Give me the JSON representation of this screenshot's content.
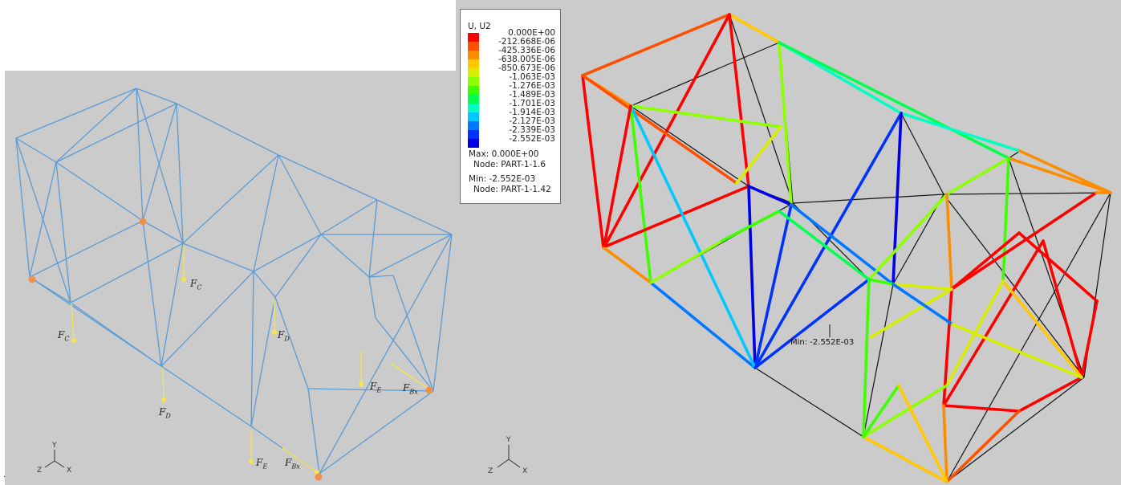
{
  "legend": {
    "title": "U, U2",
    "entries": [
      {
        "label": "0.000E+00",
        "color": "#ff0000"
      },
      {
        "label": "-212.668E-06",
        "color": "#ff5000"
      },
      {
        "label": "-425.336E-06",
        "color": "#ff8c00"
      },
      {
        "label": "-638.005E-06",
        "color": "#ffc800"
      },
      {
        "label": "-850.673E-06",
        "color": "#d8f000"
      },
      {
        "label": "-1.063E-03",
        "color": "#8cff00"
      },
      {
        "label": "-1.276E-03",
        "color": "#3cff00"
      },
      {
        "label": "-1.489E-03",
        "color": "#00ff50"
      },
      {
        "label": "-1.701E-03",
        "color": "#00ffc0"
      },
      {
        "label": "-1.914E-03",
        "color": "#00c8ff"
      },
      {
        "label": "-2.127E-03",
        "color": "#0078ff"
      },
      {
        "label": "-2.339E-03",
        "color": "#0032ff"
      },
      {
        "label": "-2.552E-03",
        "color": "#0000e6"
      }
    ],
    "max_line": "Max:  0.000E+00",
    "max_node": "Node: PART-1-1.6",
    "min_line": "Min:  -2.552E-03",
    "min_node": "Node: PART-1-1.42"
  },
  "min_marker_label": "Min:  -2.552E-03",
  "axes": {
    "y": "Y",
    "z": "Z",
    "x": "X"
  },
  "forces": {
    "fc_a": {
      "main": "F",
      "sub": "C"
    },
    "fc_b": {
      "main": "F",
      "sub": "C"
    },
    "fd_a": {
      "main": "F",
      "sub": "D"
    },
    "fd_b": {
      "main": "F",
      "sub": "D"
    },
    "fe_a": {
      "main": "F",
      "sub": "E"
    },
    "fe_b": {
      "main": "F",
      "sub": "E"
    },
    "fbx_a": {
      "main": "F",
      "sub": "Bx"
    },
    "fbx_b": {
      "main": "F",
      "sub": "Bx"
    }
  },
  "colors": {
    "viewport_bg": "#cbcbcb",
    "truss_undeformed": "#5b9bd5",
    "load_arrow": "#f5e44b",
    "support": "#f0904a",
    "outline": "#111111"
  }
}
